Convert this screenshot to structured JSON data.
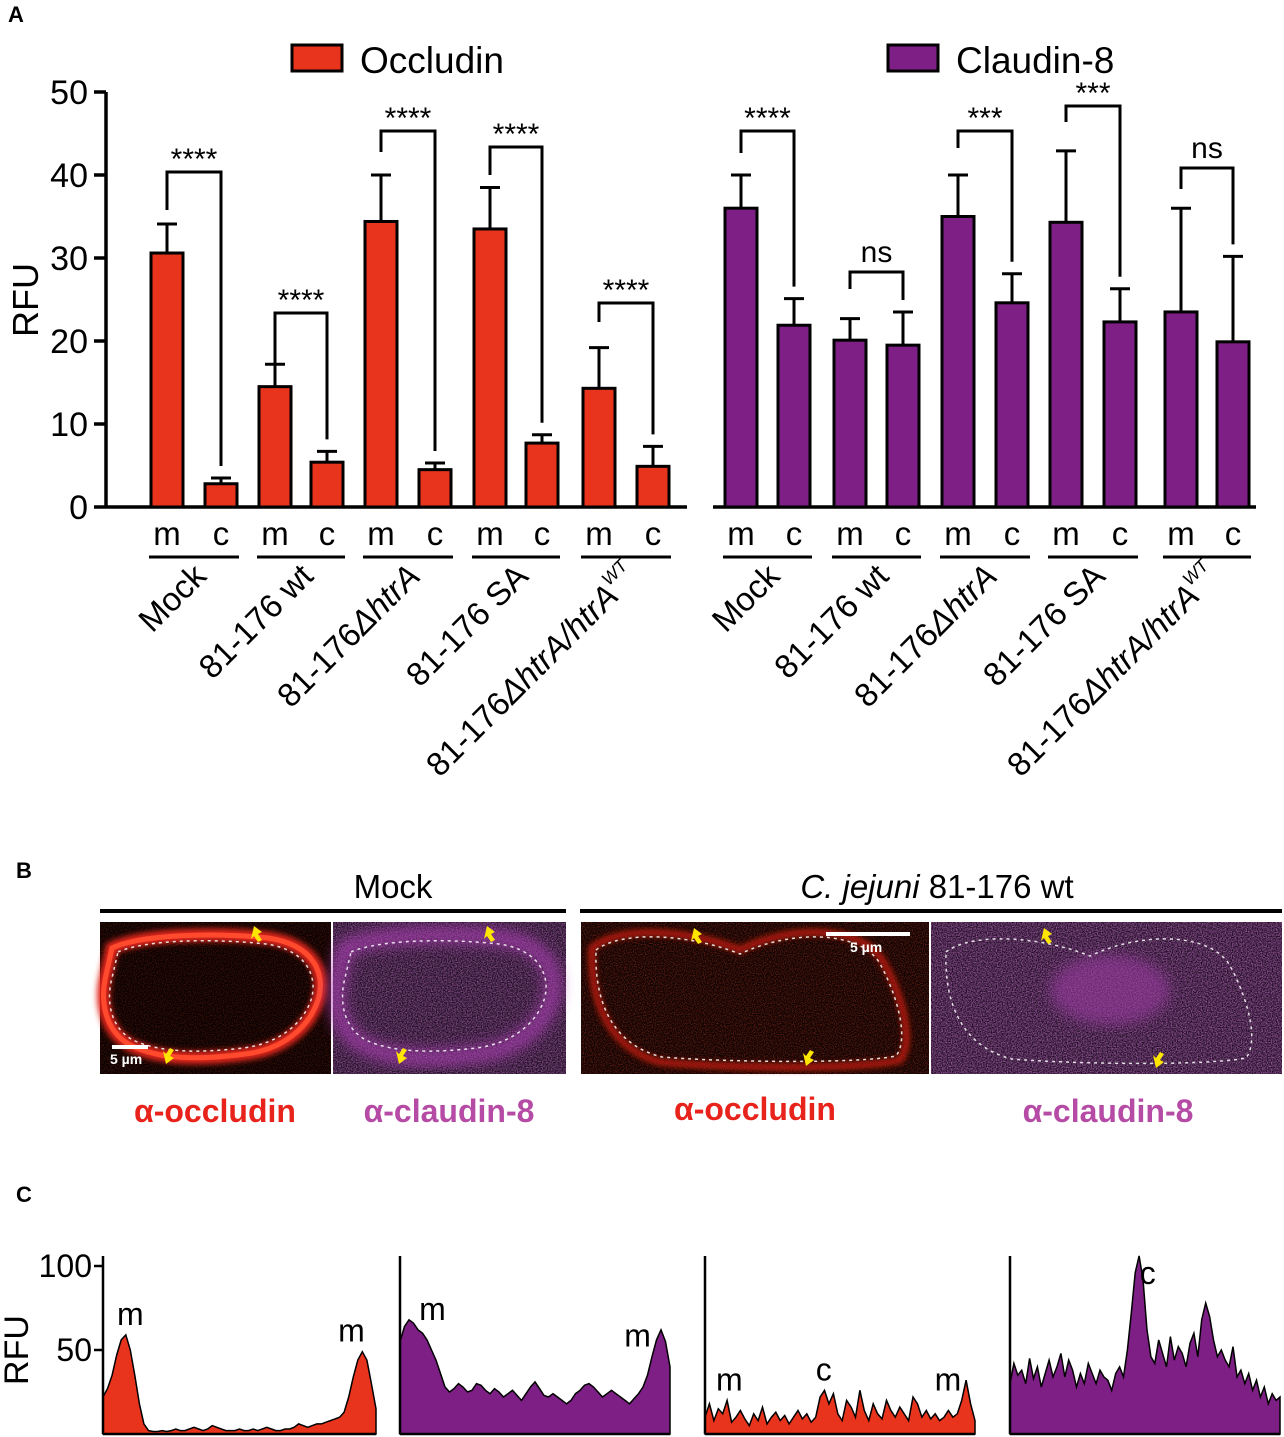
{
  "panel_labels": {
    "a": "A",
    "b": "B",
    "c": "C"
  },
  "colors": {
    "occludin": "#e8341c",
    "claudin": "#7e1f86",
    "occludin_label": "#e8231c",
    "claudin_label": "#b54ba5",
    "arrow": "#ffe600"
  },
  "chart_data": [
    {
      "id": "A",
      "type": "bar",
      "ylabel": "RFU",
      "ylim": [
        0,
        50
      ],
      "yticks": [
        "0",
        "10",
        "20",
        "30",
        "40",
        "50"
      ],
      "sublabels": [
        "m",
        "c"
      ],
      "legend": [
        "Occludin",
        "Claudin-8"
      ],
      "groups": [
        {
          "protein": "Occludin",
          "strain": "Mock",
          "m": 30.6,
          "m_err": 3.5,
          "c": 2.8,
          "c_err": 0.7,
          "sig": "****"
        },
        {
          "protein": "Occludin",
          "strain": "81-176 wt",
          "m": 14.5,
          "m_err": 2.7,
          "c": 5.4,
          "c_err": 1.3,
          "sig": "****"
        },
        {
          "protein": "Occludin",
          "strain": "81-176ΔhtrA",
          "m": 34.4,
          "m_err": 5.6,
          "c": 4.5,
          "c_err": 0.8,
          "sig": "****"
        },
        {
          "protein": "Occludin",
          "strain": "81-176 SA",
          "m": 33.5,
          "m_err": 5.0,
          "c": 7.7,
          "c_err": 1.0,
          "sig": "****"
        },
        {
          "protein": "Occludin",
          "strain": "81-176ΔhtrA/htrA^WT",
          "m": 14.3,
          "m_err": 4.9,
          "c": 4.9,
          "c_err": 2.4,
          "sig": "****"
        },
        {
          "protein": "Claudin-8",
          "strain": "Mock",
          "m": 36.0,
          "m_err": 4.0,
          "c": 21.9,
          "c_err": 3.2,
          "sig": "****"
        },
        {
          "protein": "Claudin-8",
          "strain": "81-176 wt",
          "m": 20.1,
          "m_err": 2.6,
          "c": 19.5,
          "c_err": 4.0,
          "sig": "ns"
        },
        {
          "protein": "Claudin-8",
          "strain": "81-176ΔhtrA",
          "m": 35.0,
          "m_err": 5.0,
          "c": 24.6,
          "c_err": 3.5,
          "sig": "***"
        },
        {
          "protein": "Claudin-8",
          "strain": "81-176 SA",
          "m": 34.3,
          "m_err": 8.6,
          "c": 22.3,
          "c_err": 4.0,
          "sig": "***"
        },
        {
          "protein": "Claudin-8",
          "strain": "81-176ΔhtrA/htrA^WT",
          "m": 23.5,
          "m_err": 12.5,
          "c": 19.9,
          "c_err": 10.3,
          "sig": "ns"
        }
      ]
    },
    {
      "id": "C",
      "type": "area",
      "ylabel": "RFU",
      "ylim": [
        0,
        100
      ],
      "yticks": [
        "50",
        "100"
      ],
      "profiles": [
        {
          "color": "occludin",
          "labels": [
            {
              "text": "m",
              "at": 0.1
            },
            {
              "text": "m",
              "at": 0.91
            }
          ],
          "values": [
            22,
            27,
            35,
            47,
            56,
            59,
            50,
            35,
            18,
            6,
            2,
            1.5,
            1.5,
            2,
            1.5,
            2,
            3,
            2,
            2,
            3,
            4,
            3,
            2,
            3,
            5,
            4,
            3,
            2,
            2,
            2,
            3,
            2,
            2,
            3,
            2,
            3,
            4,
            3,
            2,
            2,
            3,
            3,
            4,
            6,
            5,
            4,
            5,
            6,
            6,
            7,
            8,
            9,
            10,
            13,
            22,
            34,
            44,
            49,
            44,
            30,
            15
          ]
        },
        {
          "color": "claudin",
          "labels": [
            {
              "text": "m",
              "at": 0.12
            },
            {
              "text": "m",
              "at": 0.88
            }
          ],
          "values": [
            55,
            64,
            68,
            66,
            62,
            60,
            56,
            50,
            44,
            36,
            28,
            25,
            27,
            30,
            28,
            25,
            26,
            30,
            29,
            26,
            24,
            27,
            25,
            22,
            24,
            26,
            23,
            20,
            24,
            28,
            31,
            27,
            23,
            22,
            24,
            22,
            20,
            18,
            20,
            24,
            26,
            29,
            30,
            28,
            25,
            22,
            24,
            26,
            24,
            22,
            20,
            18,
            21,
            24,
            28,
            35,
            46,
            56,
            62,
            55,
            40
          ]
        },
        {
          "color": "occludin",
          "labels": [
            {
              "text": "m",
              "at": 0.09
            },
            {
              "text": "c",
              "at": 0.44
            },
            {
              "text": "m",
              "at": 0.9
            }
          ],
          "values": [
            10,
            18,
            8,
            15,
            12,
            20,
            7,
            10,
            14,
            9,
            5,
            12,
            8,
            16,
            6,
            10,
            13,
            8,
            11,
            6,
            10,
            14,
            9,
            12,
            7,
            10,
            22,
            26,
            18,
            24,
            12,
            8,
            20,
            16,
            10,
            26,
            14,
            8,
            18,
            12,
            9,
            20,
            14,
            10,
            16,
            12,
            8,
            22,
            18,
            10,
            14,
            9,
            12,
            8,
            10,
            14,
            10,
            12,
            20,
            32,
            18,
            8
          ]
        },
        {
          "color": "claudin",
          "labels": [
            {
              "text": "c",
              "at": 0.51
            }
          ],
          "values": [
            30,
            42,
            35,
            38,
            30,
            45,
            33,
            40,
            28,
            36,
            44,
            34,
            40,
            48,
            34,
            44,
            38,
            28,
            36,
            30,
            42,
            36,
            30,
            38,
            34,
            32,
            26,
            36,
            40,
            34,
            50,
            72,
            96,
            106,
            92,
            62,
            46,
            42,
            56,
            48,
            40,
            58,
            44,
            52,
            48,
            40,
            54,
            60,
            46,
            68,
            78,
            70,
            56,
            46,
            50,
            44,
            40,
            52,
            34,
            38,
            30,
            36,
            26,
            32,
            22,
            28,
            18,
            24,
            20,
            22
          ]
        }
      ]
    }
  ],
  "panel_b": {
    "group_titles": {
      "mock": "Mock",
      "infected_italic": "C. jejuni",
      "infected_rest": " 81-176 wt"
    },
    "scale_bar_label": "5 µm",
    "stain_labels": [
      "α-occludin",
      "α-claudin-8",
      "α-occludin",
      "α-claudin-8"
    ],
    "image_names": [
      "mock-occludin-image",
      "mock-claudin-image",
      "infected-occludin-image",
      "infected-claudin-image"
    ]
  }
}
